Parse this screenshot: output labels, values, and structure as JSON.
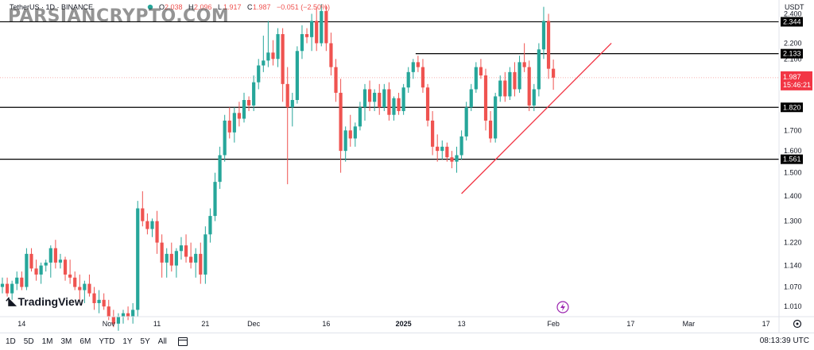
{
  "header": {
    "symbol": "TetherUS · 1D · BINANCE",
    "ohlc": [
      {
        "k": "O",
        "v": "2.038"
      },
      {
        "k": "H",
        "v": "2.096"
      },
      {
        "k": "L",
        "v": "1.917"
      },
      {
        "k": "C",
        "v": "1.987"
      },
      {
        "k": "",
        "v": "−0.051 (−2.50%)"
      }
    ],
    "currency": "USDT"
  },
  "watermark": "PARSIANCRYPTO.COM",
  "logo": "TradingView",
  "bottom": {
    "ranges": [
      "1D",
      "5D",
      "1M",
      "3M",
      "6M",
      "YTD",
      "1Y",
      "5Y",
      "All"
    ],
    "time": "08:13:39 UTC"
  },
  "colors": {
    "up": "#26a69a",
    "down": "#ef5350",
    "trend": "#f23645",
    "level": "#000000",
    "price_tag": "#f23645"
  },
  "chart_data": {
    "type": "candlestick",
    "title": "TetherUS · 1D · BINANCE",
    "ylabel": "USDT",
    "scale": "log",
    "ylim": [
      0.98,
      2.5
    ],
    "y_ticks": [
      2.4,
      2.2,
      2.1,
      1.987,
      1.82,
      1.7,
      1.6,
      1.5,
      1.4,
      1.3,
      1.22,
      1.14,
      1.07,
      1.01
    ],
    "x_ticks": [
      {
        "label": "14",
        "i": 4
      },
      {
        "label": "Nov",
        "i": 22
      },
      {
        "label": "11",
        "i": 32
      },
      {
        "label": "21",
        "i": 42
      },
      {
        "label": "Dec",
        "i": 52
      },
      {
        "label": "16",
        "i": 67
      },
      {
        "label": "2025",
        "i": 83
      },
      {
        "label": "13",
        "i": 95
      },
      {
        "label": "Feb",
        "i": 114
      },
      {
        "label": "17",
        "i": 130
      },
      {
        "label": "Mar",
        "i": 142
      },
      {
        "label": "17",
        "i": 158
      }
    ],
    "last_price": {
      "value": 1.987,
      "countdown": "15:46:21"
    },
    "levels": [
      {
        "label": "2.344",
        "value": 2.344,
        "from": 0,
        "to": 159
      },
      {
        "label": "2.133",
        "value": 2.133,
        "from": 86,
        "to": 159
      },
      {
        "label": "1.820",
        "value": 1.82,
        "from": 0,
        "to": 159
      },
      {
        "label": "1.561",
        "value": 1.561,
        "from": 0,
        "to": 159
      }
    ],
    "trendline": {
      "from": {
        "i": 95,
        "price": 1.41
      },
      "to": {
        "i": 126,
        "price": 2.2
      }
    },
    "candles": [
      [
        0,
        1.07,
        1.1,
        1.05,
        1.08
      ],
      [
        1,
        1.08,
        1.1,
        1.04,
        1.05
      ],
      [
        2,
        1.05,
        1.09,
        1.03,
        1.08
      ],
      [
        3,
        1.08,
        1.12,
        1.06,
        1.1
      ],
      [
        4,
        1.1,
        1.12,
        1.06,
        1.07
      ],
      [
        5,
        1.07,
        1.2,
        1.06,
        1.18
      ],
      [
        6,
        1.18,
        1.2,
        1.12,
        1.13
      ],
      [
        7,
        1.13,
        1.16,
        1.09,
        1.11
      ],
      [
        8,
        1.11,
        1.15,
        1.08,
        1.14
      ],
      [
        9,
        1.14,
        1.16,
        1.12,
        1.15
      ],
      [
        10,
        1.15,
        1.21,
        1.1,
        1.2
      ],
      [
        11,
        1.2,
        1.23,
        1.13,
        1.15
      ],
      [
        12,
        1.15,
        1.18,
        1.13,
        1.16
      ],
      [
        13,
        1.16,
        1.17,
        1.09,
        1.11
      ],
      [
        14,
        1.11,
        1.16,
        1.08,
        1.1
      ],
      [
        15,
        1.1,
        1.12,
        1.06,
        1.07
      ],
      [
        16,
        1.07,
        1.11,
        1.03,
        1.06
      ],
      [
        17,
        1.06,
        1.09,
        1.02,
        1.08
      ],
      [
        18,
        1.08,
        1.11,
        1.04,
        1.05
      ],
      [
        19,
        1.05,
        1.07,
        1.0,
        1.02
      ],
      [
        20,
        1.02,
        1.06,
        0.99,
        1.03
      ],
      [
        21,
        1.03,
        1.05,
        1.0,
        1.01
      ],
      [
        22,
        1.01,
        1.03,
        0.97,
        0.98
      ],
      [
        23,
        0.98,
        1.0,
        0.95,
        0.96
      ],
      [
        24,
        0.96,
        0.99,
        0.94,
        0.98
      ],
      [
        25,
        0.98,
        1.0,
        0.96,
        0.99
      ],
      [
        26,
        0.99,
        1.01,
        0.97,
        0.98
      ],
      [
        27,
        0.98,
        1.02,
        0.96,
        1.0
      ],
      [
        28,
        1.0,
        1.38,
        0.98,
        1.35
      ],
      [
        29,
        1.35,
        1.42,
        1.28,
        1.3
      ],
      [
        30,
        1.3,
        1.33,
        1.25,
        1.27
      ],
      [
        31,
        1.27,
        1.31,
        1.24,
        1.3
      ],
      [
        32,
        1.3,
        1.34,
        1.18,
        1.22
      ],
      [
        33,
        1.22,
        1.25,
        1.1,
        1.15
      ],
      [
        34,
        1.15,
        1.2,
        1.1,
        1.18
      ],
      [
        35,
        1.18,
        1.22,
        1.12,
        1.14
      ],
      [
        36,
        1.14,
        1.2,
        1.1,
        1.19
      ],
      [
        37,
        1.19,
        1.24,
        1.16,
        1.21
      ],
      [
        38,
        1.21,
        1.25,
        1.15,
        1.17
      ],
      [
        39,
        1.17,
        1.22,
        1.13,
        1.15
      ],
      [
        40,
        1.15,
        1.2,
        1.1,
        1.18
      ],
      [
        41,
        1.18,
        1.22,
        1.08,
        1.11
      ],
      [
        42,
        1.11,
        1.28,
        1.08,
        1.25
      ],
      [
        43,
        1.25,
        1.35,
        1.22,
        1.32
      ],
      [
        44,
        1.32,
        1.5,
        1.3,
        1.46
      ],
      [
        45,
        1.46,
        1.62,
        1.43,
        1.58
      ],
      [
        46,
        1.58,
        1.78,
        1.55,
        1.75
      ],
      [
        47,
        1.75,
        1.82,
        1.66,
        1.69
      ],
      [
        48,
        1.69,
        1.82,
        1.64,
        1.79
      ],
      [
        49,
        1.79,
        1.85,
        1.72,
        1.76
      ],
      [
        50,
        1.76,
        1.9,
        1.74,
        1.86
      ],
      [
        51,
        1.86,
        1.88,
        1.8,
        1.83
      ],
      [
        52,
        1.83,
        2.0,
        1.8,
        1.96
      ],
      [
        53,
        1.96,
        2.1,
        1.92,
        2.06
      ],
      [
        54,
        2.06,
        2.25,
        2.02,
        2.09
      ],
      [
        55,
        2.09,
        2.35,
        2.05,
        2.14
      ],
      [
        56,
        2.14,
        2.22,
        2.06,
        2.1
      ],
      [
        57,
        2.1,
        2.3,
        2.05,
        2.26
      ],
      [
        58,
        2.26,
        2.3,
        1.85,
        1.95
      ],
      [
        59,
        1.95,
        2.05,
        1.45,
        1.82
      ],
      [
        60,
        1.82,
        1.9,
        1.72,
        1.86
      ],
      [
        61,
        1.86,
        2.18,
        1.84,
        2.15
      ],
      [
        62,
        2.15,
        2.32,
        2.1,
        2.26
      ],
      [
        63,
        2.26,
        2.3,
        2.2,
        2.24
      ],
      [
        64,
        2.24,
        2.4,
        2.15,
        2.35
      ],
      [
        65,
        2.35,
        2.45,
        2.15,
        2.2
      ],
      [
        66,
        2.2,
        2.47,
        2.18,
        2.42
      ],
      [
        67,
        2.42,
        2.46,
        2.15,
        2.2
      ],
      [
        68,
        2.2,
        2.27,
        2.0,
        2.05
      ],
      [
        69,
        2.05,
        2.1,
        1.85,
        1.9
      ],
      [
        70,
        1.9,
        1.98,
        1.5,
        1.6
      ],
      [
        71,
        1.6,
        1.72,
        1.55,
        1.7
      ],
      [
        72,
        1.7,
        1.78,
        1.62,
        1.66
      ],
      [
        73,
        1.66,
        1.74,
        1.62,
        1.72
      ],
      [
        74,
        1.72,
        1.85,
        1.7,
        1.82
      ],
      [
        75,
        1.82,
        1.95,
        1.75,
        1.92
      ],
      [
        76,
        1.92,
        1.97,
        1.8,
        1.85
      ],
      [
        77,
        1.85,
        1.92,
        1.8,
        1.9
      ],
      [
        78,
        1.9,
        1.95,
        1.78,
        1.82
      ],
      [
        79,
        1.82,
        1.95,
        1.8,
        1.92
      ],
      [
        80,
        1.92,
        1.96,
        1.75,
        1.78
      ],
      [
        81,
        1.78,
        1.88,
        1.75,
        1.87
      ],
      [
        82,
        1.87,
        1.9,
        1.78,
        1.8
      ],
      [
        83,
        1.8,
        1.95,
        1.78,
        1.93
      ],
      [
        84,
        1.93,
        2.05,
        1.9,
        2.02
      ],
      [
        85,
        2.02,
        2.1,
        1.98,
        2.08
      ],
      [
        86,
        2.08,
        2.12,
        2.02,
        2.05
      ],
      [
        87,
        2.05,
        2.1,
        1.9,
        1.93
      ],
      [
        88,
        1.93,
        1.95,
        1.72,
        1.75
      ],
      [
        89,
        1.75,
        1.8,
        1.58,
        1.62
      ],
      [
        90,
        1.62,
        1.68,
        1.55,
        1.6
      ],
      [
        91,
        1.6,
        1.65,
        1.56,
        1.62
      ],
      [
        92,
        1.62,
        1.64,
        1.55,
        1.57
      ],
      [
        93,
        1.57,
        1.6,
        1.52,
        1.55
      ],
      [
        94,
        1.55,
        1.62,
        1.5,
        1.58
      ],
      [
        95,
        1.58,
        1.7,
        1.56,
        1.67
      ],
      [
        96,
        1.67,
        1.85,
        1.65,
        1.82
      ],
      [
        97,
        1.82,
        1.95,
        1.8,
        1.92
      ],
      [
        98,
        1.92,
        2.08,
        1.9,
        2.05
      ],
      [
        99,
        2.05,
        2.1,
        1.98,
        2.0
      ],
      [
        100,
        2.0,
        2.04,
        1.7,
        1.75
      ],
      [
        101,
        1.75,
        1.8,
        1.64,
        1.66
      ],
      [
        102,
        1.66,
        1.9,
        1.64,
        1.88
      ],
      [
        103,
        1.88,
        2.0,
        1.85,
        1.97
      ],
      [
        104,
        1.97,
        2.02,
        1.85,
        1.88
      ],
      [
        105,
        1.88,
        2.05,
        1.86,
        2.02
      ],
      [
        106,
        2.02,
        2.08,
        1.88,
        1.92
      ],
      [
        107,
        1.92,
        2.12,
        1.9,
        2.08
      ],
      [
        108,
        2.08,
        2.2,
        2.02,
        2.05
      ],
      [
        109,
        2.05,
        2.09,
        1.8,
        1.83
      ],
      [
        110,
        1.83,
        1.95,
        1.8,
        1.92
      ],
      [
        111,
        1.92,
        2.2,
        1.88,
        2.16
      ],
      [
        112,
        2.16,
        2.45,
        2.1,
        2.35
      ],
      [
        113,
        2.35,
        2.4,
        1.98,
        2.04
      ],
      [
        114,
        2.04,
        2.096,
        1.917,
        1.987
      ]
    ]
  }
}
